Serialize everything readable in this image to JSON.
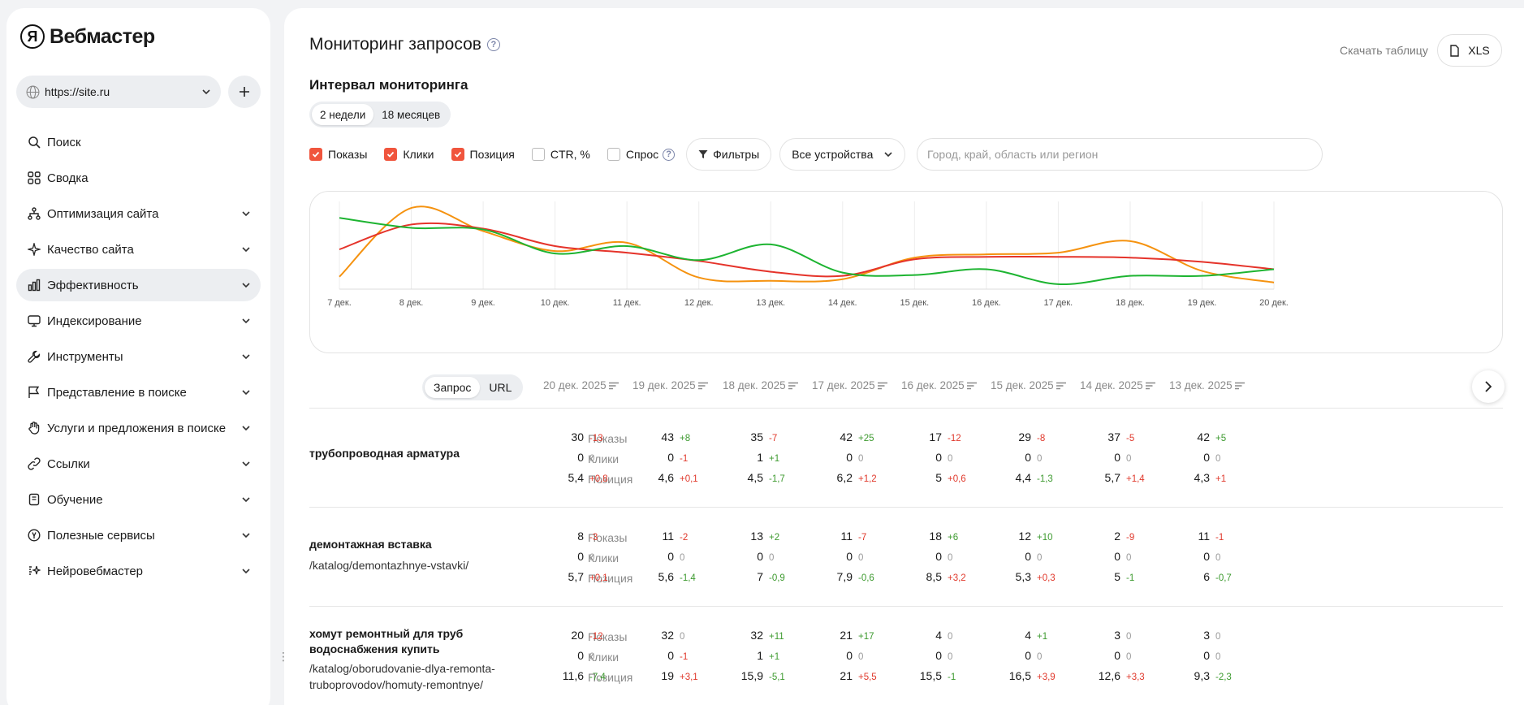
{
  "app": {
    "logo_letter": "Я",
    "name": "Вебмастер"
  },
  "site_select": {
    "value": "https://site.ru"
  },
  "nav": [
    {
      "label": "Поиск",
      "icon": "search-icon",
      "expandable": false,
      "active": false
    },
    {
      "label": "Сводка",
      "icon": "grid-icon",
      "expandable": false,
      "active": false
    },
    {
      "label": "Оптимизация сайта",
      "icon": "sitemap-icon",
      "expandable": true,
      "active": false
    },
    {
      "label": "Качество сайта",
      "icon": "sparkle-icon",
      "expandable": true,
      "active": false
    },
    {
      "label": "Эффективность",
      "icon": "bar-chart-icon",
      "expandable": true,
      "active": true
    },
    {
      "label": "Индексирование",
      "icon": "monitor-icon",
      "expandable": true,
      "active": false
    },
    {
      "label": "Инструменты",
      "icon": "wrench-icon",
      "expandable": true,
      "active": false
    },
    {
      "label": "Представление в поиске",
      "icon": "flag-icon",
      "expandable": true,
      "active": false
    },
    {
      "label": "Услуги и предложения в поиске",
      "icon": "hand-icon",
      "expandable": true,
      "active": false
    },
    {
      "label": "Ссылки",
      "icon": "link-icon",
      "expandable": true,
      "active": false
    },
    {
      "label": "Обучение",
      "icon": "book-icon",
      "expandable": true,
      "active": false
    },
    {
      "label": "Полезные сервисы",
      "icon": "yandex-circle-icon",
      "expandable": true,
      "active": false
    },
    {
      "label": "Нейровебмастер",
      "icon": "ai-icon",
      "expandable": true,
      "active": false
    }
  ],
  "header": {
    "title": "Мониторинг запросов",
    "download_label": "Скачать таблицу",
    "xls_label": "XLS"
  },
  "interval": {
    "title": "Интервал мониторинга",
    "options": [
      {
        "label": "2 недели",
        "selected": true
      },
      {
        "label": "18 месяцев",
        "selected": false
      }
    ]
  },
  "filters": {
    "checkboxes": [
      {
        "label": "Показы",
        "checked": true
      },
      {
        "label": "Клики",
        "checked": true
      },
      {
        "label": "Позиция",
        "checked": true
      },
      {
        "label": "CTR, %",
        "checked": false
      },
      {
        "label": "Спрос",
        "checked": false
      }
    ],
    "filters_label": "Фильтры",
    "device_value": "Все устройства",
    "region_placeholder": "Город, край, область или регион"
  },
  "chart_data": {
    "type": "line",
    "x": [
      "7 дек.",
      "8 дек.",
      "9 дек.",
      "10 дек.",
      "11 дек.",
      "12 дек.",
      "13 дек.",
      "14 дек.",
      "15 дек.",
      "16 дек.",
      "17 дек.",
      "18 дек.",
      "19 дек.",
      "20 дек."
    ],
    "ylim": [
      0,
      100
    ],
    "grid": "vertical",
    "series": [
      {
        "color": "#f5920f",
        "values": [
          15,
          98,
          70,
          46,
          56,
          14,
          10,
          12,
          38,
          42,
          44,
          58,
          22,
          8
        ]
      },
      {
        "color": "#e5332a",
        "values": [
          48,
          78,
          73,
          52,
          44,
          34,
          21,
          16,
          36,
          39,
          39,
          38,
          33,
          24
        ]
      },
      {
        "color": "#1db431",
        "values": [
          86,
          74,
          72,
          43,
          52,
          35,
          54,
          20,
          17,
          24,
          6,
          16,
          16,
          24
        ]
      }
    ]
  },
  "table": {
    "tabs": [
      {
        "label": "Запрос",
        "selected": true
      },
      {
        "label": "URL",
        "selected": false
      }
    ],
    "dates": [
      "20 дек. 2025",
      "19 дек. 2025",
      "18 дек. 2025",
      "17 дек. 2025",
      "16 дек. 2025",
      "15 дек. 2025",
      "14 дек. 2025",
      "13 дек. 2025"
    ],
    "metric_labels": [
      "Показы",
      "Клики",
      "Позиция"
    ],
    "rows": [
      {
        "query": "трубопроводная арматура",
        "url": "",
        "shows": [
          [
            "30",
            "-13"
          ],
          [
            "43",
            "+8"
          ],
          [
            "35",
            "-7"
          ],
          [
            "42",
            "+25"
          ],
          [
            "17",
            "-12"
          ],
          [
            "29",
            "-8"
          ],
          [
            "37",
            "-5"
          ],
          [
            "42",
            "+5"
          ]
        ],
        "clicks": [
          [
            "0",
            "0"
          ],
          [
            "0",
            "-1"
          ],
          [
            "1",
            "+1"
          ],
          [
            "0",
            "0"
          ],
          [
            "0",
            "0"
          ],
          [
            "0",
            "0"
          ],
          [
            "0",
            "0"
          ],
          [
            "0",
            "0"
          ]
        ],
        "position": [
          [
            "5,4",
            "+0,8"
          ],
          [
            "4,6",
            "+0,1"
          ],
          [
            "4,5",
            "-1,7"
          ],
          [
            "6,2",
            "+1,2"
          ],
          [
            "5",
            "+0,6"
          ],
          [
            "4,4",
            "-1,3"
          ],
          [
            "5,7",
            "+1,4"
          ],
          [
            "4,3",
            "+1"
          ]
        ]
      },
      {
        "query": "демонтажная вставка",
        "url": "/katalog/demontazhnye-vstavki/",
        "shows": [
          [
            "8",
            "-3"
          ],
          [
            "11",
            "-2"
          ],
          [
            "13",
            "+2"
          ],
          [
            "11",
            "-7"
          ],
          [
            "18",
            "+6"
          ],
          [
            "12",
            "+10"
          ],
          [
            "2",
            "-9"
          ],
          [
            "11",
            "-1"
          ]
        ],
        "clicks": [
          [
            "0",
            "0"
          ],
          [
            "0",
            "0"
          ],
          [
            "0",
            "0"
          ],
          [
            "0",
            "0"
          ],
          [
            "0",
            "0"
          ],
          [
            "0",
            "0"
          ],
          [
            "0",
            "0"
          ],
          [
            "0",
            "0"
          ]
        ],
        "position": [
          [
            "5,7",
            "+0,1"
          ],
          [
            "5,6",
            "-1,4"
          ],
          [
            "7",
            "-0,9"
          ],
          [
            "7,9",
            "-0,6"
          ],
          [
            "8,5",
            "+3,2"
          ],
          [
            "5,3",
            "+0,3"
          ],
          [
            "5",
            "-1"
          ],
          [
            "6",
            "-0,7"
          ]
        ]
      },
      {
        "query": "хомут ремонтный для труб водоснабжения купить",
        "url": "/katalog/oborudovanie-dlya-remonta-truboprovodov/homuty-remontnye/",
        "shows": [
          [
            "20",
            "-12"
          ],
          [
            "32",
            "0"
          ],
          [
            "32",
            "+11"
          ],
          [
            "21",
            "+17"
          ],
          [
            "4",
            "0"
          ],
          [
            "4",
            "+1"
          ],
          [
            "3",
            "0"
          ],
          [
            "3",
            "0"
          ]
        ],
        "clicks": [
          [
            "0",
            "0"
          ],
          [
            "0",
            "-1"
          ],
          [
            "1",
            "+1"
          ],
          [
            "0",
            "0"
          ],
          [
            "0",
            "0"
          ],
          [
            "0",
            "0"
          ],
          [
            "0",
            "0"
          ],
          [
            "0",
            "0"
          ]
        ],
        "position": [
          [
            "11,6",
            "-7,4"
          ],
          [
            "19",
            "+3,1"
          ],
          [
            "15,9",
            "-5,1"
          ],
          [
            "21",
            "+5,5"
          ],
          [
            "15,5",
            "-1"
          ],
          [
            "16,5",
            "+3,9"
          ],
          [
            "12,6",
            "+3,3"
          ],
          [
            "9,3",
            "-2,3"
          ]
        ]
      }
    ]
  }
}
